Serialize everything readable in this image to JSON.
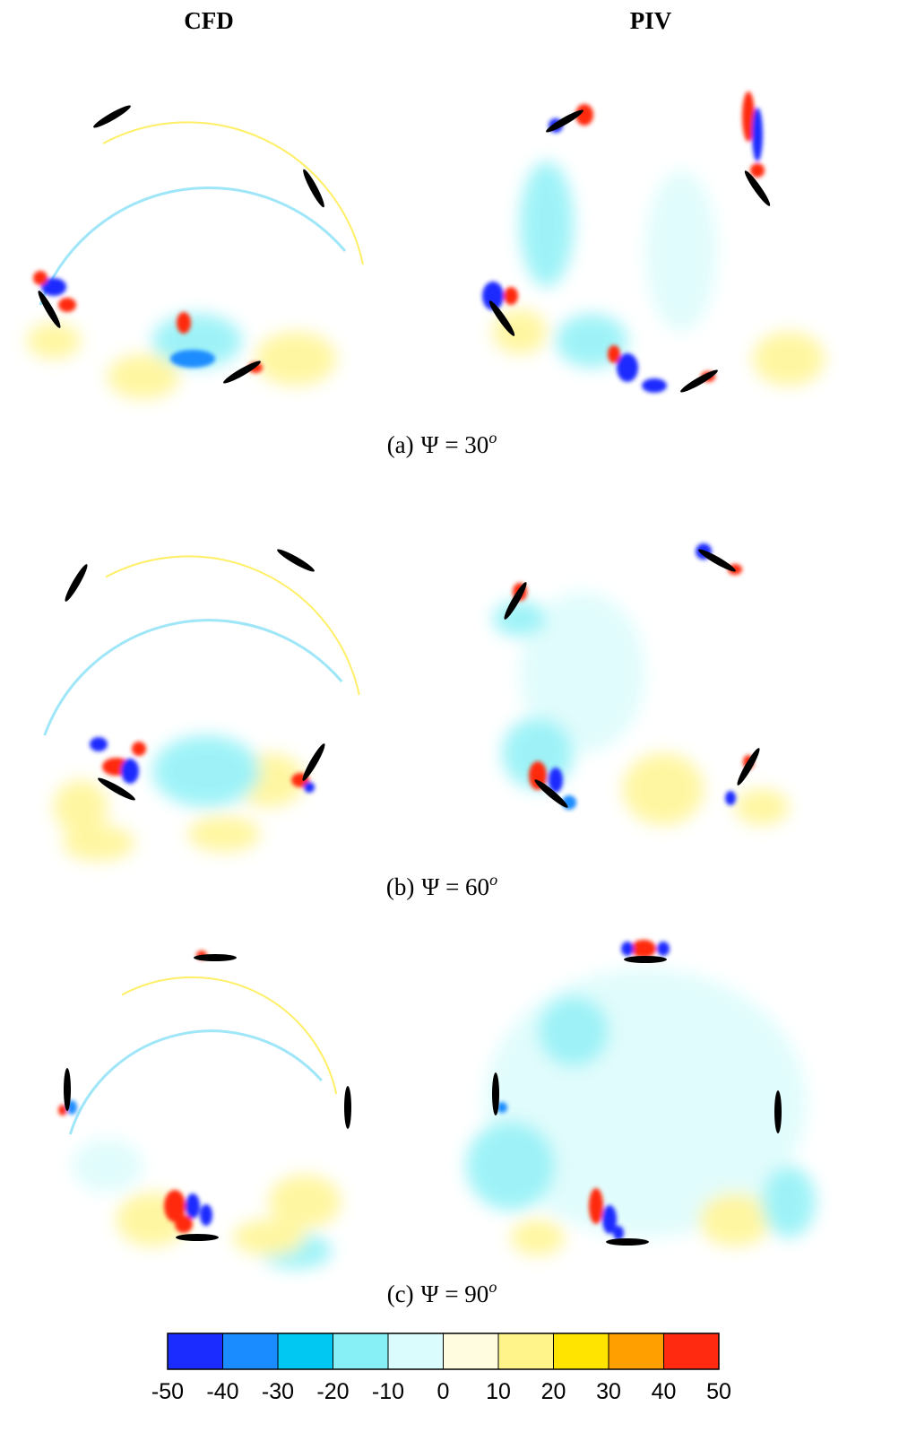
{
  "headers": [
    "CFD",
    "PIV"
  ],
  "panels": [
    {
      "label": "(a)",
      "expr": "Ψ = 30",
      "sup": "o"
    },
    {
      "label": "(b)",
      "expr": "Ψ = 60",
      "sup": "o"
    },
    {
      "label": "(c)",
      "expr": "Ψ = 90",
      "sup": "o"
    }
  ],
  "colorbar": {
    "ticks": [
      -50,
      -40,
      -30,
      -20,
      -10,
      0,
      10,
      20,
      30,
      40,
      50
    ],
    "colors": [
      "#1a2cff",
      "#1a8cff",
      "#00c8f2",
      "#86f0f6",
      "#dafcfc",
      "#fffce0",
      "#fff48a",
      "#ffe400",
      "#ffa000",
      "#ff2a10"
    ]
  }
}
